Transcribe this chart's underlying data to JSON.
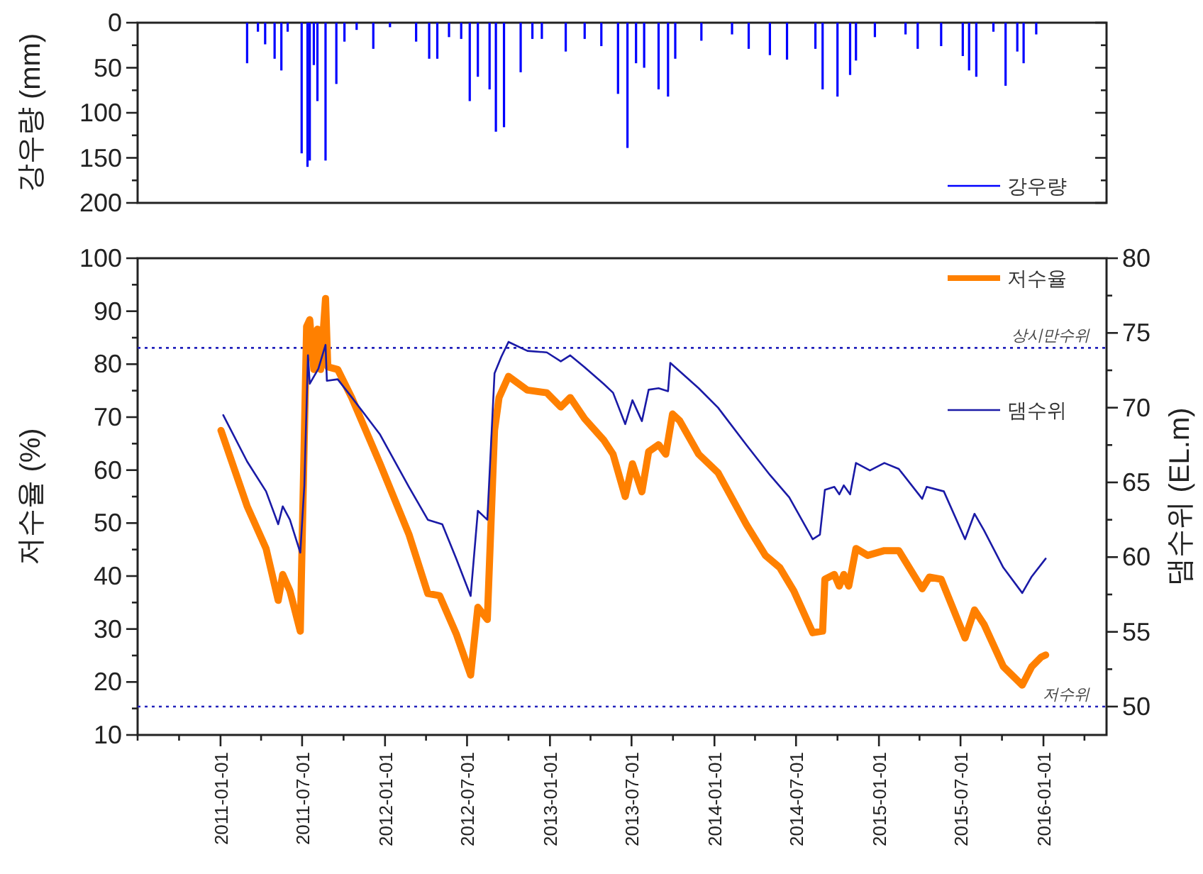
{
  "chart_data": [
    {
      "type": "bar",
      "ylabel": "강우량 (mm)",
      "xlim": [
        "2010-07-01",
        "2016-05-20"
      ],
      "ylim": [
        200,
        0
      ],
      "yticks": [
        0,
        {
          "value": 25,
          "label": null
        },
        50,
        {
          "value": 75,
          "label": null
        },
        100,
        {
          "value": 125,
          "label": null
        },
        150,
        {
          "value": 175,
          "label": null
        },
        200
      ],
      "tick_labels": "y",
      "legend": "bottom right",
      "series": [
        {
          "name": "강우량",
          "color": "#0000ff",
          "x": [
            "2011-03-01",
            "2011-03-25",
            "2011-04-10",
            "2011-05-01",
            "2011-05-16",
            "2011-05-30",
            "2011-06-30",
            "2011-07-13",
            "2011-07-18",
            "2011-07-27",
            "2011-08-04",
            "2011-08-22",
            "2011-09-15",
            "2011-10-03",
            "2011-10-30",
            "2011-12-06",
            "2012-01-12",
            "2012-03-10",
            "2012-04-08",
            "2012-04-26",
            "2012-05-22",
            "2012-06-18",
            "2012-07-07",
            "2012-07-25",
            "2012-08-20",
            "2012-09-03",
            "2012-09-21",
            "2012-10-28",
            "2012-11-23",
            "2012-12-14",
            "2013-02-05",
            "2013-03-19",
            "2013-04-25",
            "2013-06-01",
            "2013-06-22",
            "2013-07-11",
            "2013-07-29",
            "2013-08-30",
            "2013-09-20",
            "2013-10-06",
            "2013-12-03",
            "2014-02-09",
            "2014-03-18",
            "2014-05-04",
            "2014-06-11",
            "2014-08-13",
            "2014-08-29",
            "2014-10-01",
            "2014-10-29",
            "2014-11-11",
            "2014-12-23",
            "2015-03-01",
            "2015-03-28",
            "2015-05-19",
            "2015-07-06",
            "2015-07-20",
            "2015-08-05",
            "2015-09-12",
            "2015-10-09",
            "2015-11-04",
            "2015-11-18",
            "2015-12-16"
          ],
          "values": [
            45,
            10,
            24,
            40,
            53,
            10,
            145,
            160,
            153,
            47,
            87,
            153,
            68,
            21,
            8,
            29,
            5,
            21,
            40,
            40,
            16,
            18,
            87,
            60,
            74,
            121,
            116,
            55,
            18,
            18,
            32,
            18,
            26,
            79,
            139,
            45,
            50,
            74,
            82,
            40,
            20,
            13,
            29,
            36,
            41,
            29,
            74,
            82,
            58,
            42,
            16,
            13,
            29,
            26,
            37,
            53,
            60,
            10,
            70,
            32,
            45,
            13
          ]
        }
      ]
    },
    {
      "type": "line",
      "ylabel": "저수율 (%)",
      "y2label": "댐수위 (EL.m)",
      "xlim": [
        "2010-07-01",
        "2016-05-20"
      ],
      "xticks": [
        {
          "value": "2010-07-01",
          "label": null
        },
        {
          "value": "2010-10-01",
          "label": null
        },
        "2011-01-01",
        {
          "value": "2011-04-01",
          "label": null
        },
        "2011-07-01",
        {
          "value": "2011-10-01",
          "label": null
        },
        "2012-01-01",
        {
          "value": "2012-04-01",
          "label": null
        },
        "2012-07-01",
        {
          "value": "2012-10-01",
          "label": null
        },
        "2013-01-01",
        {
          "value": "2013-04-01",
          "label": null
        },
        "2013-07-01",
        {
          "value": "2013-10-01",
          "label": null
        },
        "2014-01-01",
        {
          "value": "2014-04-01",
          "label": null
        },
        "2014-07-01",
        {
          "value": "2014-10-01",
          "label": null
        },
        "2015-01-01",
        {
          "value": "2015-04-01",
          "label": null
        },
        "2015-07-01",
        {
          "value": "2015-10-01",
          "label": null
        },
        "2016-01-01",
        {
          "value": "2016-04-01",
          "label": null
        }
      ],
      "ylim": [
        10,
        100
      ],
      "yticks": [
        10,
        {
          "value": 15,
          "label": null
        },
        20,
        {
          "value": 25,
          "label": null
        },
        30,
        {
          "value": 35,
          "label": null
        },
        40,
        {
          "value": 45,
          "label": null
        },
        50,
        {
          "value": 55,
          "label": null
        },
        60,
        {
          "value": 65,
          "label": null
        },
        70,
        {
          "value": 75,
          "label": null
        },
        80,
        {
          "value": 85,
          "label": null
        },
        90,
        {
          "value": 95,
          "label": null
        },
        100
      ],
      "y2lim": [
        48.1,
        80
      ],
      "y2ticks": [
        50,
        {
          "value": 52.5,
          "label": null
        },
        55,
        {
          "value": 57.5,
          "label": null
        },
        60,
        {
          "value": 62.5,
          "label": null
        },
        65,
        {
          "value": 67.5,
          "label": null
        },
        70,
        {
          "value": 72.5,
          "label": null
        },
        75,
        {
          "value": 77.5,
          "label": null
        },
        80
      ],
      "legend": "right",
      "ref_lines": [
        {
          "axis": "y2",
          "value": 74,
          "label": "상시만수위",
          "color": "#2222bb",
          "line_style": "dotted"
        },
        {
          "axis": "y2",
          "value": 50,
          "label": "저수위",
          "color": "#2222bb",
          "line_style": "dotted"
        }
      ],
      "series": [
        {
          "name": "저수율",
          "color": "#ff8000",
          "x": [
            "2011-01-02",
            "2011-03-01",
            "2011-04-12",
            "2011-05-09",
            "2011-05-19",
            "2011-06-04",
            "2011-06-27",
            "2011-07-11",
            "2011-07-18",
            "2011-07-27",
            "2011-08-04",
            "2011-08-11",
            "2011-08-22",
            "2011-08-27",
            "2011-09-18",
            "2011-10-19",
            "2011-12-21",
            "2012-02-23",
            "2012-04-05",
            "2012-05-01",
            "2012-06-07",
            "2012-07-09",
            "2012-07-25",
            "2012-08-15",
            "2012-08-31",
            "2012-09-10",
            "2012-10-01",
            "2012-11-12",
            "2012-12-25",
            "2013-01-25",
            "2013-02-15",
            "2013-03-19",
            "2013-04-30",
            "2013-05-21",
            "2013-06-17",
            "2013-07-03",
            "2013-07-24",
            "2013-08-08",
            "2013-08-30",
            "2013-09-15",
            "2013-09-30",
            "2013-10-16",
            "2013-11-27",
            "2014-01-09",
            "2014-03-13",
            "2014-04-24",
            "2014-05-26",
            "2014-06-26",
            "2014-08-07",
            "2014-08-29",
            "2014-09-03",
            "2014-09-24",
            "2014-10-05",
            "2014-10-15",
            "2014-10-26",
            "2014-11-11",
            "2014-12-07",
            "2015-01-13",
            "2015-02-14",
            "2015-04-07",
            "2015-04-23",
            "2015-05-19",
            "2015-07-11",
            "2015-08-01",
            "2015-08-22",
            "2015-10-04",
            "2015-11-15",
            "2015-12-06",
            "2015-12-27",
            "2016-01-06"
          ],
          "values": [
            67.5,
            53.2,
            45.2,
            35.4,
            40.3,
            37.2,
            29.6,
            87.1,
            88.4,
            79.0,
            86.6,
            79.0,
            92.4,
            79.5,
            79.0,
            73.7,
            61.2,
            47.9,
            36.7,
            36.3,
            29.1,
            21.3,
            34.1,
            31.8,
            67.5,
            73.7,
            77.7,
            75.1,
            74.6,
            71.9,
            73.7,
            69.7,
            65.7,
            63.0,
            55.0,
            61.2,
            55.9,
            63.5,
            64.8,
            63.0,
            70.6,
            69.3,
            63.0,
            59.5,
            49.7,
            43.9,
            41.6,
            37.2,
            29.3,
            29.6,
            39.4,
            40.3,
            38.1,
            40.3,
            38.1,
            45.2,
            43.9,
            44.8,
            44.8,
            37.6,
            39.8,
            39.4,
            28.3,
            33.6,
            30.9,
            22.9,
            19.4,
            22.9,
            24.7,
            25.1
          ]
        },
        {
          "name": "댐수위",
          "color": "#1a1aa6",
          "axis": "y2",
          "x": [
            "2011-01-07",
            "2011-03-01",
            "2011-04-12",
            "2011-05-09",
            "2011-05-19",
            "2011-06-04",
            "2011-06-27",
            "2011-07-06",
            "2011-07-14",
            "2011-07-18",
            "2011-08-06",
            "2011-08-22",
            "2011-08-25",
            "2011-09-18",
            "2011-10-19",
            "2011-12-21",
            "2012-02-23",
            "2012-04-05",
            "2012-05-07",
            "2012-06-07",
            "2012-07-09",
            "2012-07-25",
            "2012-08-15",
            "2012-08-31",
            "2012-09-15",
            "2012-10-01",
            "2012-11-12",
            "2012-12-25",
            "2013-01-25",
            "2013-02-15",
            "2013-03-19",
            "2013-04-30",
            "2013-05-21",
            "2013-06-17",
            "2013-07-03",
            "2013-07-24",
            "2013-08-08",
            "2013-08-30",
            "2013-09-20",
            "2013-09-25",
            "2013-11-27",
            "2014-01-09",
            "2014-03-13",
            "2014-05-04",
            "2014-06-16",
            "2014-08-07",
            "2014-08-23",
            "2014-09-03",
            "2014-09-24",
            "2014-10-05",
            "2014-10-15",
            "2014-10-29",
            "2014-11-11",
            "2014-12-12",
            "2015-01-13",
            "2015-02-14",
            "2015-04-07",
            "2015-04-17",
            "2015-05-25",
            "2015-07-11",
            "2015-08-01",
            "2015-08-22",
            "2015-10-04",
            "2015-11-15",
            "2015-12-06",
            "2016-01-06"
          ],
          "values": [
            69.5,
            66.4,
            64.4,
            62.2,
            63.4,
            62.5,
            60.3,
            64.8,
            73.5,
            71.6,
            72.6,
            74.2,
            71.8,
            71.9,
            70.7,
            68.2,
            64.7,
            62.5,
            62.2,
            59.9,
            57.4,
            63.1,
            62.5,
            72.3,
            73.4,
            74.4,
            73.8,
            73.7,
            73.1,
            73.5,
            72.7,
            71.6,
            71.0,
            68.9,
            70.5,
            69.1,
            71.2,
            71.3,
            71.1,
            73.0,
            71.3,
            70.0,
            67.5,
            65.5,
            64.0,
            61.2,
            61.5,
            64.5,
            64.7,
            64.2,
            64.8,
            64.2,
            66.3,
            65.8,
            66.3,
            65.9,
            63.9,
            64.7,
            64.4,
            61.2,
            62.9,
            61.8,
            59.3,
            57.6,
            58.7,
            59.9
          ]
        }
      ]
    }
  ]
}
